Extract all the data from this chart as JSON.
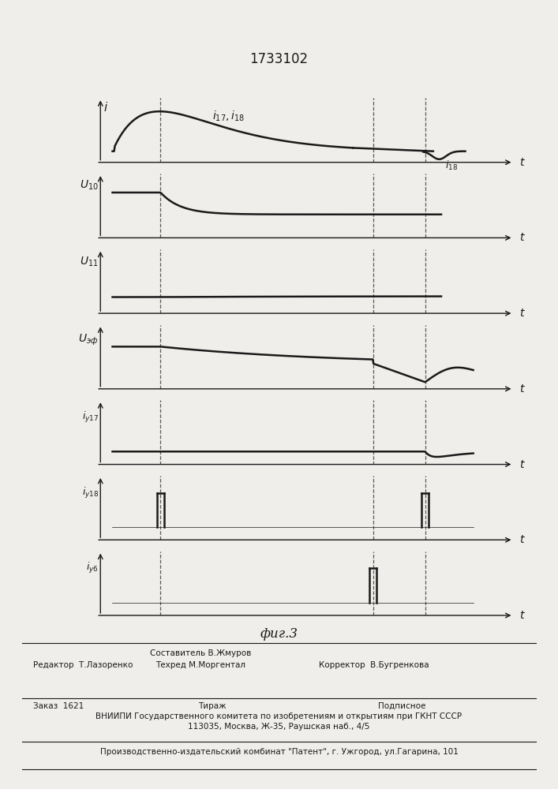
{
  "title": "1733102",
  "fig_caption": "фиг.3",
  "background_color": "#f0eeeb",
  "line_color": "#1a1a1a",
  "dashed_line_color": "#333333",
  "panel_labels": [
    "i",
    "U₁₀",
    "U₁₁",
    "Uэф",
    "i_y17",
    "i_y18",
    "i_y6"
  ],
  "panel_labels_raw": [
    "i",
    "U_{10}",
    "U_{11}",
    "U_{эф}",
    "i_{y17}",
    "i_{y18}",
    "i_{y6}"
  ],
  "footer_line1": "Составитель В.Жмуров",
  "footer_line2": "Редактор  Т.Лазоренко",
  "footer_line3": "Техред М.Моргентал",
  "footer_line4": "Корректор  В.Бугренкова",
  "footer_line5": "Заказ  1621",
  "footer_line6": "Тираж",
  "footer_line7": "Подписное",
  "footer_line8": "ВНИИПИ Государственного комитета по изобретениям и открытиям при ГКНТ СССР",
  "footer_line9": "113035, Москва, Ж-35, Раушская наб., 4/5",
  "footer_line10": "Производственно-издательский комбинат \"Патент\", г. Ужгород, ул.Гагарина, 101"
}
